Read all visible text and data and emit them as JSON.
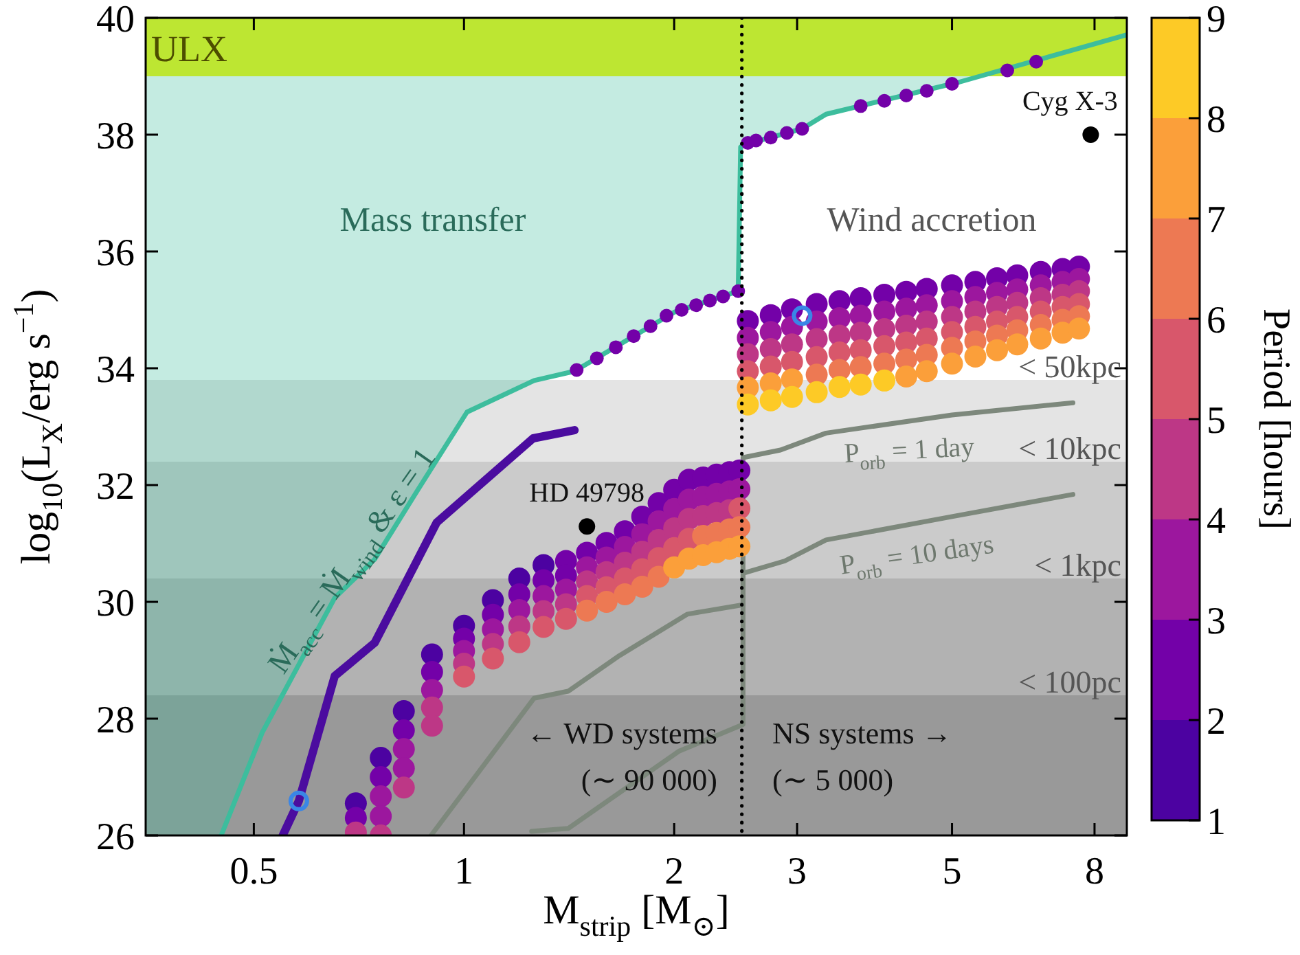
{
  "chart_data": {
    "type": "scatter",
    "xlabel": "M$_{strip}$ [M$_{⊙}$]",
    "ylabel": "log$_{10}$(L$_{X}$/erg s$^{−1}$)",
    "clabel": "Period [hours]",
    "xlim": [
      0.35,
      8.9
    ],
    "ylim": [
      26,
      40
    ],
    "xticks": [
      0.5,
      1,
      2,
      3,
      5,
      8
    ],
    "yticks": [
      26,
      28,
      30,
      32,
      34,
      36,
      38,
      40
    ],
    "log": "x",
    "clim": [
      1,
      9
    ],
    "cticks": [
      1,
      2,
      3,
      4,
      5,
      6,
      7,
      8,
      9
    ],
    "bands": [
      {
        "axis": "y",
        "from": 39,
        "to": 40,
        "label": "ULX",
        "color": "#bde632"
      },
      {
        "axis": "y",
        "from": 32.4,
        "to": 33.8,
        "label": "< 50kpc",
        "color": "#e4e4e4"
      },
      {
        "axis": "y",
        "from": 30.4,
        "to": 32.4,
        "label": "< 10kpc",
        "color": "#cbcbcb"
      },
      {
        "axis": "y",
        "from": 28.4,
        "to": 30.4,
        "label": "< 1kpc",
        "color": "#b2b2b2"
      },
      {
        "axis": "y",
        "from": 26,
        "to": 28.4,
        "label": "< 100pc",
        "color": "#999999"
      }
    ],
    "ref_lines": [
      {
        "axis": "x",
        "value": 2.5,
        "color": "#000000",
        "line_style": "dotted"
      }
    ],
    "annotations": [
      "Mass transfer",
      "Wind accretion",
      "← WD systems\n(∼ 90 000)",
      "NS systems →\n(∼ 5 000)"
    ],
    "series": [
      {
        "type": "line",
        "name": "Ṁ$_{acc}$ = Ṁ$_{wind}$ & ε = 1",
        "color": "#3dbd9d",
        "x": [
          0.35,
          0.449,
          0.514,
          0.653,
          0.745,
          0.857,
          1.01,
          1.26,
          1.44,
          2.0,
          2.47,
          2.49,
          2.54,
          3.05,
          3.3,
          5.12,
          5.48,
          8.9
        ],
        "values": [
          null,
          26,
          27.76,
          30.07,
          30.73,
          31.9,
          33.25,
          33.79,
          33.95,
          34.96,
          35.32,
          37.79,
          37.84,
          38.1,
          38.35,
          38.9,
          39.0,
          39.71
        ],
        "lower": [
          26,
          26,
          27.76,
          30.07,
          30.73,
          31.9,
          33.25,
          33.79,
          33.95,
          34.96,
          35.32,
          37.79,
          37.84,
          38.1,
          38.35,
          38.9,
          39.0,
          39.71
        ],
        "upper": [
          39,
          39,
          39,
          39,
          39,
          39,
          39,
          39,
          39,
          39,
          39,
          39,
          39,
          39,
          39,
          39,
          39,
          39.71
        ]
      },
      {
        "type": "line",
        "name": "P$_{orb}$ = 1 day",
        "color": "#7d887c",
        "x": [
          0.897,
          1.26,
          1.41,
          1.67,
          2.09,
          2.51,
          2.51,
          2.84,
          3.3,
          5.0,
          7.45
        ],
        "values": [
          26,
          28.35,
          28.47,
          29.08,
          29.79,
          29.95,
          32.47,
          32.6,
          32.89,
          33.2,
          33.41
        ]
      },
      {
        "type": "line",
        "name": "P$_{orb}$ = 10 days",
        "color": "#7d887c",
        "x": [
          1.25,
          1.41,
          2.03,
          2.51,
          2.51,
          2.88,
          3.3,
          5.0,
          7.45
        ],
        "values": [
          26.07,
          26.12,
          27.44,
          27.9,
          30.49,
          30.7,
          31.06,
          31.46,
          31.84
        ]
      },
      {
        "x": [
          0.7,
          0.7,
          0.7,
          0.76,
          0.76,
          0.76,
          0.76,
          0.76,
          0.82,
          0.82,
          0.82,
          0.82,
          0.82,
          0.9,
          0.9,
          0.9,
          0.9,
          0.9,
          1.0,
          1.0,
          1.0,
          1.0,
          1.0,
          1.1,
          1.1,
          1.1,
          1.1,
          1.1,
          1.2,
          1.2,
          1.2,
          1.2,
          1.2,
          1.3,
          1.3,
          1.3,
          1.3,
          1.3,
          1.4,
          1.4,
          1.4,
          1.4,
          1.4,
          1.5,
          1.5,
          1.5,
          1.5,
          1.5,
          1.6,
          1.6,
          1.6,
          1.6,
          1.6,
          1.7,
          1.7,
          1.7,
          1.7,
          1.7,
          1.8,
          1.8,
          1.8,
          1.8,
          1.8,
          1.9,
          1.9,
          1.9,
          1.9,
          1.9,
          2.0,
          2.0,
          2.0,
          2.0,
          2.0,
          2.1,
          2.1,
          2.1,
          2.1,
          2.1,
          2.2,
          2.2,
          2.2,
          2.2,
          2.2,
          2.3,
          2.3,
          2.3,
          2.3,
          2.3,
          2.4,
          2.4,
          2.4,
          2.4,
          2.4,
          2.48,
          2.48,
          2.48,
          2.48,
          2.48
        ],
        "values": [
          26.55,
          26.3,
          26.05,
          27.33,
          27.0,
          26.67,
          26.33,
          26.0,
          28.13,
          27.8,
          27.48,
          27.15,
          26.82,
          29.1,
          28.8,
          28.49,
          28.19,
          27.88,
          29.59,
          29.37,
          29.16,
          28.94,
          28.72,
          30.03,
          29.78,
          29.53,
          29.28,
          29.03,
          30.4,
          30.13,
          29.86,
          29.58,
          29.31,
          30.63,
          30.37,
          30.1,
          29.84,
          29.57,
          30.7,
          30.45,
          30.21,
          29.96,
          29.71,
          30.84,
          30.59,
          30.35,
          30.1,
          29.85,
          31.01,
          30.76,
          30.51,
          30.25,
          30.0,
          31.21,
          30.94,
          30.67,
          30.4,
          30.13,
          31.46,
          31.16,
          30.86,
          30.56,
          30.26,
          31.69,
          31.38,
          31.06,
          30.75,
          30.43,
          31.92,
          31.59,
          31.26,
          30.92,
          30.59,
          32.09,
          31.75,
          31.42,
          31.08,
          30.74,
          32.13,
          31.8,
          31.47,
          31.13,
          30.8,
          32.18,
          31.85,
          31.52,
          31.18,
          30.85,
          32.22,
          31.89,
          31.57,
          31.24,
          30.91,
          32.25,
          31.93,
          31.6,
          31.28,
          30.95
        ],
        "colors": [
          "#4c02a1",
          "#7301a8",
          "#bd3786",
          "#4c02a1",
          "#7301a8",
          "#9c179e",
          "#9c179e",
          "#bd3786",
          "#4c02a1",
          "#7301a8",
          "#9c179e",
          "#9c179e",
          "#bd3786",
          "#4c02a1",
          "#7301a8",
          "#9c179e",
          "#bd3786",
          "#bd3786",
          "#4c02a1",
          "#7301a8",
          "#9c179e",
          "#bd3786",
          "#d8576b",
          "#4c02a1",
          "#7301a8",
          "#9c179e",
          "#bd3786",
          "#d8576b",
          "#4c02a1",
          "#7301a8",
          "#9c179e",
          "#bd3786",
          "#d8576b",
          "#4c02a1",
          "#7301a8",
          "#9c179e",
          "#bd3786",
          "#d8576b",
          "#7301a8",
          "#7301a8",
          "#9c179e",
          "#bd3786",
          "#d8576b",
          "#7301a8",
          "#9c179e",
          "#bd3786",
          "#d8576b",
          "#ed7953",
          "#7301a8",
          "#9c179e",
          "#bd3786",
          "#d8576b",
          "#ed7953",
          "#7301a8",
          "#9c179e",
          "#bd3786",
          "#d8576b",
          "#ed7953",
          "#7301a8",
          "#9c179e",
          "#bd3786",
          "#d8576b",
          "#ed7953",
          "#7301a8",
          "#9c179e",
          "#bd3786",
          "#d8576b",
          "#ed7953",
          "#7301a8",
          "#9c179e",
          "#bd3786",
          "#d8576b",
          "#fb9f3a",
          "#7301a8",
          "#9c179e",
          "#bd3786",
          "#d8576b",
          "#fb9f3a",
          "#7301a8",
          "#9c179e",
          "#bd3786",
          "#ed7953",
          "#fb9f3a",
          "#7301a8",
          "#9c179e",
          "#bd3786",
          "#ed7953",
          "#fb9f3a",
          "#7301a8",
          "#9c179e",
          "#bd3786",
          "#ed7953",
          "#fb9f3a",
          "#7301a8",
          "#9c179e",
          "#d8576b",
          "#ed7953",
          "#fb9f3a"
        ]
      },
      {
        "x": [
          2.55,
          2.55,
          2.55,
          2.55,
          2.55,
          2.55,
          2.75,
          2.75,
          2.75,
          2.75,
          2.75,
          2.75,
          2.95,
          2.95,
          2.95,
          2.95,
          2.95,
          2.95,
          3.2,
          3.2,
          3.2,
          3.2,
          3.2,
          3.2,
          3.45,
          3.45,
          3.45,
          3.45,
          3.45,
          3.45,
          3.7,
          3.7,
          3.7,
          3.7,
          3.7,
          3.7,
          4.0,
          4.0,
          4.0,
          4.0,
          4.0,
          4.0,
          4.3,
          4.3,
          4.3,
          4.3,
          4.3,
          4.3,
          4.6,
          4.6,
          4.6,
          4.6,
          4.6,
          4.6,
          5.0,
          5.0,
          5.0,
          5.0,
          5.0,
          5.0,
          5.4,
          5.4,
          5.4,
          5.4,
          5.4,
          5.4,
          5.8,
          5.8,
          5.8,
          5.8,
          5.8,
          5.8,
          6.2,
          6.2,
          6.2,
          6.2,
          6.2,
          6.2,
          6.7,
          6.7,
          6.7,
          6.7,
          6.7,
          6.7,
          7.2,
          7.2,
          7.2,
          7.2,
          7.2,
          7.2,
          7.6,
          7.6,
          7.6,
          7.6,
          7.6,
          7.6
        ],
        "values": [
          34.81,
          34.52,
          34.24,
          33.95,
          33.67,
          33.38,
          34.91,
          34.62,
          34.33,
          34.03,
          33.74,
          33.45,
          35.01,
          34.71,
          34.41,
          34.11,
          33.81,
          33.51,
          35.1,
          34.8,
          34.5,
          34.19,
          33.89,
          33.59,
          35.15,
          34.86,
          34.56,
          34.27,
          33.97,
          33.68,
          35.2,
          34.9,
          34.61,
          34.31,
          34.02,
          33.72,
          35.26,
          34.97,
          34.67,
          34.38,
          34.08,
          33.79,
          35.31,
          35.02,
          34.73,
          34.44,
          34.15,
          33.86,
          35.36,
          35.08,
          34.8,
          34.51,
          34.23,
          33.95,
          35.42,
          35.15,
          34.88,
          34.62,
          34.35,
          34.08,
          35.48,
          35.22,
          34.97,
          34.71,
          34.46,
          34.2,
          35.54,
          35.29,
          35.05,
          34.8,
          34.56,
          34.31,
          35.59,
          35.35,
          35.12,
          34.88,
          34.65,
          34.41,
          35.65,
          35.42,
          35.2,
          34.97,
          34.74,
          34.51,
          35.7,
          35.48,
          35.26,
          35.05,
          34.83,
          34.61,
          35.74,
          35.53,
          35.32,
          35.1,
          34.89,
          34.68
        ],
        "colors": [
          "#7301a8",
          "#9c179e",
          "#bd3786",
          "#d8576b",
          "#fb9f3a",
          "#fdca26",
          "#7301a8",
          "#9c179e",
          "#bd3786",
          "#d8576b",
          "#fb9f3a",
          "#fdca26",
          "#7301a8",
          "#9c179e",
          "#bd3786",
          "#d8576b",
          "#fb9f3a",
          "#fdca26",
          "#7301a8",
          "#9c179e",
          "#bd3786",
          "#d8576b",
          "#ed7953",
          "#fdca26",
          "#7301a8",
          "#9c179e",
          "#bd3786",
          "#d8576b",
          "#ed7953",
          "#fdca26",
          "#7301a8",
          "#9c179e",
          "#bd3786",
          "#d8576b",
          "#ed7953",
          "#fdca26",
          "#7301a8",
          "#9c179e",
          "#bd3786",
          "#d8576b",
          "#ed7953",
          "#fdca26",
          "#7301a8",
          "#9c179e",
          "#bd3786",
          "#d8576b",
          "#ed7953",
          "#fb9f3a",
          "#7301a8",
          "#9c179e",
          "#bd3786",
          "#d8576b",
          "#ed7953",
          "#fb9f3a",
          "#7301a8",
          "#9c179e",
          "#bd3786",
          "#d8576b",
          "#ed7953",
          "#fb9f3a",
          "#7301a8",
          "#9c179e",
          "#bd3786",
          "#d8576b",
          "#ed7953",
          "#fb9f3a",
          "#7301a8",
          "#9c179e",
          "#bd3786",
          "#d8576b",
          "#ed7953",
          "#fb9f3a",
          "#7301a8",
          "#9c179e",
          "#bd3786",
          "#d8576b",
          "#ed7953",
          "#fb9f3a",
          "#7301a8",
          "#9c179e",
          "#bd3786",
          "#d8576b",
          "#ed7953",
          "#fb9f3a",
          "#7301a8",
          "#9c179e",
          "#bd3786",
          "#d8576b",
          "#ed7953",
          "#fb9f3a",
          "#7301a8",
          "#9c179e",
          "#bd3786",
          "#d8576b",
          "#ed7953",
          "#fb9f3a"
        ]
      },
      {
        "type": "line",
        "color": "#4b0c9f",
        "x": [
          0.55,
          0.58,
          0.653,
          0.745,
          0.914,
          1.256,
          1.44
        ],
        "values": [
          26,
          26.59,
          28.73,
          29.3,
          31.36,
          32.8,
          32.94
        ]
      },
      {
        "x": [
          1.45,
          1.55,
          1.65,
          1.75,
          1.85,
          1.95,
          2.05,
          2.15,
          2.25,
          2.35,
          2.47,
          2.55,
          2.62,
          2.75,
          2.9,
          3.05,
          3.7,
          4.0,
          4.3,
          4.6,
          5.0,
          6.0,
          6.6
        ],
        "values": [
          33.97,
          34.17,
          34.36,
          34.55,
          34.72,
          34.9,
          35.0,
          35.08,
          35.16,
          35.23,
          35.32,
          37.86,
          37.9,
          37.95,
          38.03,
          38.1,
          38.49,
          38.58,
          38.67,
          38.75,
          38.87,
          39.1,
          39.25
        ],
        "color": "#7301a8"
      },
      {
        "marker": "circle",
        "color": "#3a86e6",
        "x": [
          0.58,
          3.05
        ],
        "values": [
          26.59,
          34.9
        ]
      },
      {
        "name": "HD 49798",
        "color": "#000000",
        "x": [
          1.5
        ],
        "values": [
          31.29
        ]
      },
      {
        "name": "Cyg X-3",
        "color": "#000000",
        "x": [
          7.9
        ],
        "values": [
          38.0
        ]
      }
    ]
  }
}
